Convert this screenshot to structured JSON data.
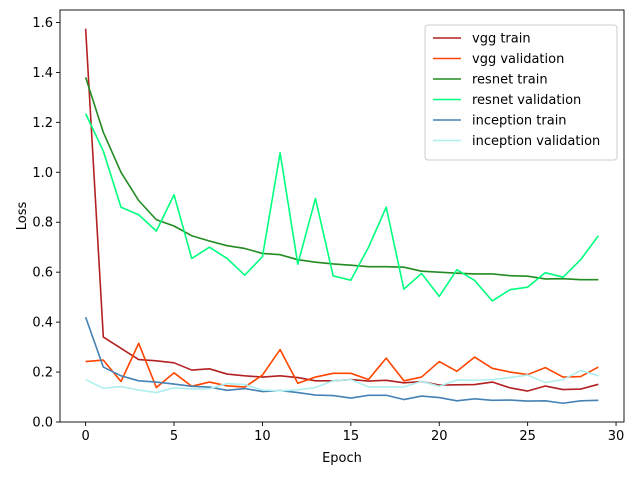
{
  "chart_data": {
    "type": "line",
    "title": "",
    "xlabel": "Epoch",
    "ylabel": "Loss",
    "xlim": [
      -1.45,
      30.45
    ],
    "ylim": [
      0.0,
      1.65
    ],
    "xticks": [
      0,
      5,
      10,
      15,
      20,
      25,
      30
    ],
    "yticks": [
      0.0,
      0.2,
      0.4,
      0.6,
      0.8,
      1.0,
      1.2,
      1.4,
      1.6
    ],
    "xtick_labels": [
      "0",
      "5",
      "10",
      "15",
      "20",
      "25",
      "30"
    ],
    "ytick_labels": [
      "0.0",
      "0.2",
      "0.4",
      "0.6",
      "0.8",
      "1.0",
      "1.2",
      "1.4",
      "1.6"
    ],
    "grid": false,
    "legend_position": "top-right",
    "x": [
      0,
      1,
      2,
      3,
      4,
      5,
      6,
      7,
      8,
      9,
      10,
      11,
      12,
      13,
      14,
      15,
      16,
      17,
      18,
      19,
      20,
      21,
      22,
      23,
      24,
      25,
      26,
      27,
      28,
      29
    ],
    "series": [
      {
        "name": "vgg train",
        "color": "#b22222",
        "values": [
          1.575,
          0.34,
          0.295,
          0.25,
          0.245,
          0.237,
          0.208,
          0.213,
          0.192,
          0.185,
          0.18,
          0.185,
          0.178,
          0.165,
          0.165,
          0.17,
          0.164,
          0.167,
          0.157,
          0.162,
          0.148,
          0.149,
          0.15,
          0.16,
          0.137,
          0.124,
          0.144,
          0.13,
          0.132,
          0.151
        ]
      },
      {
        "name": "vgg validation",
        "color": "#ff4500",
        "values": [
          0.242,
          0.248,
          0.162,
          0.315,
          0.138,
          0.197,
          0.143,
          0.16,
          0.145,
          0.14,
          0.188,
          0.29,
          0.155,
          0.18,
          0.195,
          0.195,
          0.17,
          0.256,
          0.165,
          0.18,
          0.242,
          0.203,
          0.26,
          0.215,
          0.2,
          0.19,
          0.218,
          0.18,
          0.182,
          0.22
        ]
      },
      {
        "name": "resnet train",
        "color": "#228b22",
        "values": [
          1.38,
          1.16,
          1.0,
          0.887,
          0.81,
          0.785,
          0.746,
          0.725,
          0.706,
          0.695,
          0.675,
          0.67,
          0.65,
          0.64,
          0.633,
          0.628,
          0.622,
          0.622,
          0.62,
          0.604,
          0.6,
          0.596,
          0.593,
          0.593,
          0.586,
          0.584,
          0.573,
          0.574,
          0.57,
          0.57
        ]
      },
      {
        "name": "resnet validation",
        "color": "#00ff7f",
        "values": [
          1.235,
          1.085,
          0.86,
          0.83,
          0.765,
          0.91,
          0.655,
          0.7,
          0.655,
          0.588,
          0.662,
          1.078,
          0.632,
          0.895,
          0.585,
          0.568,
          0.7,
          0.86,
          0.532,
          0.595,
          0.503,
          0.61,
          0.567,
          0.485,
          0.53,
          0.54,
          0.598,
          0.58,
          0.65,
          0.746
        ]
      },
      {
        "name": "inception train",
        "color": "#4682b4",
        "values": [
          0.42,
          0.22,
          0.185,
          0.165,
          0.16,
          0.152,
          0.143,
          0.14,
          0.127,
          0.134,
          0.122,
          0.126,
          0.118,
          0.108,
          0.106,
          0.096,
          0.107,
          0.107,
          0.09,
          0.104,
          0.098,
          0.085,
          0.093,
          0.087,
          0.088,
          0.084,
          0.085,
          0.075,
          0.085,
          0.087
        ]
      },
      {
        "name": "inception validation",
        "color": "#afeeee",
        "values": [
          0.17,
          0.135,
          0.142,
          0.128,
          0.118,
          0.137,
          0.132,
          0.133,
          0.154,
          0.15,
          0.128,
          0.125,
          0.129,
          0.138,
          0.165,
          0.17,
          0.14,
          0.14,
          0.14,
          0.163,
          0.143,
          0.168,
          0.167,
          0.17,
          0.178,
          0.188,
          0.158,
          0.17,
          0.206,
          0.185
        ]
      }
    ]
  }
}
